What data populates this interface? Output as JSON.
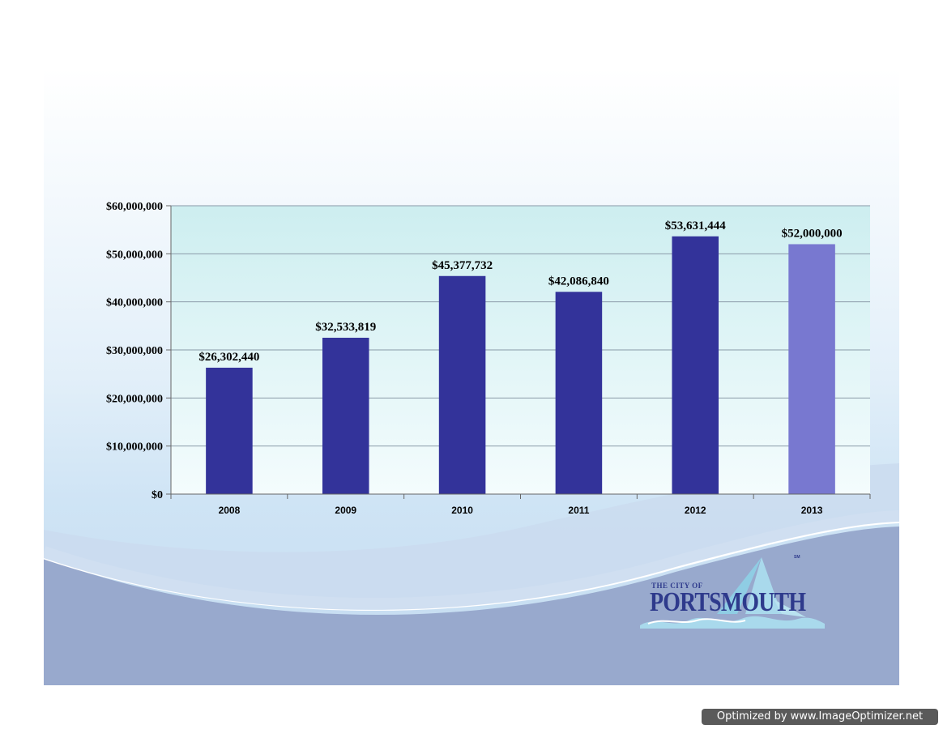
{
  "chart_data": {
    "type": "bar",
    "categories": [
      "2008",
      "2009",
      "2010",
      "2011",
      "2012",
      "2013"
    ],
    "values": [
      26302440,
      32533819,
      45377732,
      42086840,
      53631444,
      52000000
    ],
    "data_labels": [
      "$26,302,440",
      "$32,533,819",
      "$45,377,732",
      "$42,086,840",
      "$53,631,444",
      "$52,000,000"
    ],
    "y_ticks": [
      0,
      10000000,
      20000000,
      30000000,
      40000000,
      50000000,
      60000000
    ],
    "y_tick_labels": [
      "$0",
      "$10,000,000",
      "$20,000,000",
      "$30,000,000",
      "$40,000,000",
      "$50,000,000",
      "$60,000,000"
    ],
    "ylim": [
      0,
      60000000
    ],
    "grid": true,
    "legend": "none",
    "colors": {
      "bar": "#33339a",
      "highlight_bar": "#7878d0",
      "plot_bg_top": "#cdeef0",
      "plot_bg_bottom": "#f4fcfd"
    },
    "highlight_index": 5
  },
  "logo": {
    "line1": "THE CITY OF",
    "line2": "PORTSMOUTH",
    "mark": "SM"
  },
  "watermark": "Optimized by www.ImageOptimizer.net"
}
